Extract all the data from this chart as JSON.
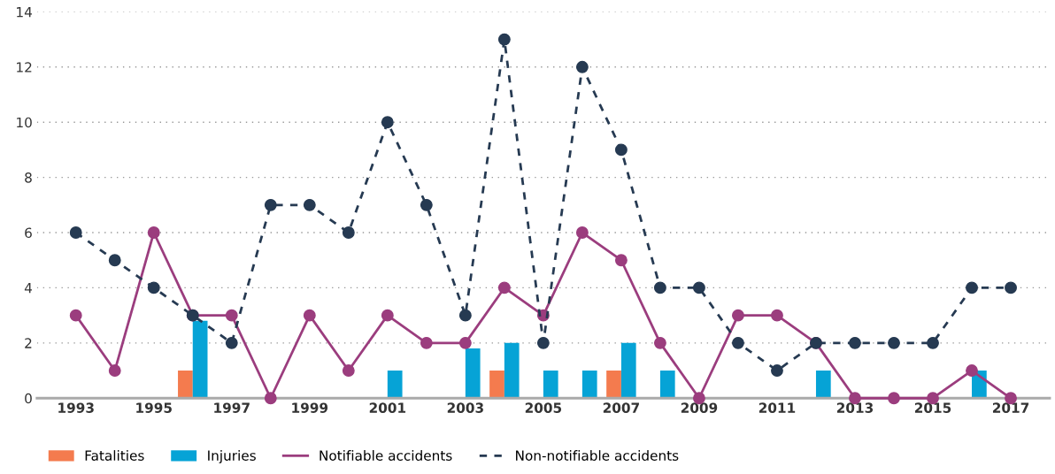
{
  "chart_data": {
    "type": "bar",
    "categories": [
      "1993",
      null,
      "1995",
      null,
      "1997",
      null,
      "1999",
      null,
      "2001",
      null,
      "2003",
      null,
      "2005",
      null,
      "2007",
      null,
      "2009",
      null,
      "2011",
      null,
      "2013",
      null,
      "2015",
      null,
      "2017"
    ],
    "ylim": [
      0,
      14
    ],
    "yticks": [
      0,
      2,
      4,
      6,
      8,
      10,
      12,
      14
    ],
    "grid": "y",
    "legend": "bottom left",
    "series": [
      {
        "name": "Fatalities",
        "color": "#f47b4e",
        "values": [
          0,
          0,
          0,
          1,
          0,
          0,
          0,
          0,
          0,
          0,
          0,
          1,
          0,
          0,
          1,
          0,
          0,
          0,
          0,
          0,
          0,
          0,
          0,
          0,
          0
        ]
      },
      {
        "name": "Injuries",
        "color": "#06a3d6",
        "values": [
          0,
          0,
          0,
          2.8,
          0,
          0,
          0,
          0,
          1,
          0,
          1.8,
          2,
          1,
          1,
          2,
          1,
          0,
          0,
          0,
          1,
          0,
          0,
          0,
          1,
          0
        ]
      },
      {
        "name": "Notifiable accidents",
        "type": "line",
        "color": "#9b3d7e",
        "marker": "circle",
        "line_style": "solid",
        "values": [
          3,
          1,
          6,
          3,
          3,
          0,
          3,
          1,
          3,
          2,
          2,
          4,
          3,
          6,
          5,
          2,
          0,
          3,
          3,
          2,
          0,
          0,
          0,
          1,
          0
        ]
      },
      {
        "name": "Non-notifiable accidents",
        "type": "line",
        "color": "#263a52",
        "marker": "circle",
        "line_style": "dashed",
        "values": [
          6,
          5,
          4,
          3,
          2,
          7,
          7,
          6,
          10,
          7,
          3,
          13,
          2,
          12,
          9,
          4,
          4,
          2,
          1,
          2,
          2,
          2,
          2,
          4,
          4
        ]
      }
    ]
  }
}
